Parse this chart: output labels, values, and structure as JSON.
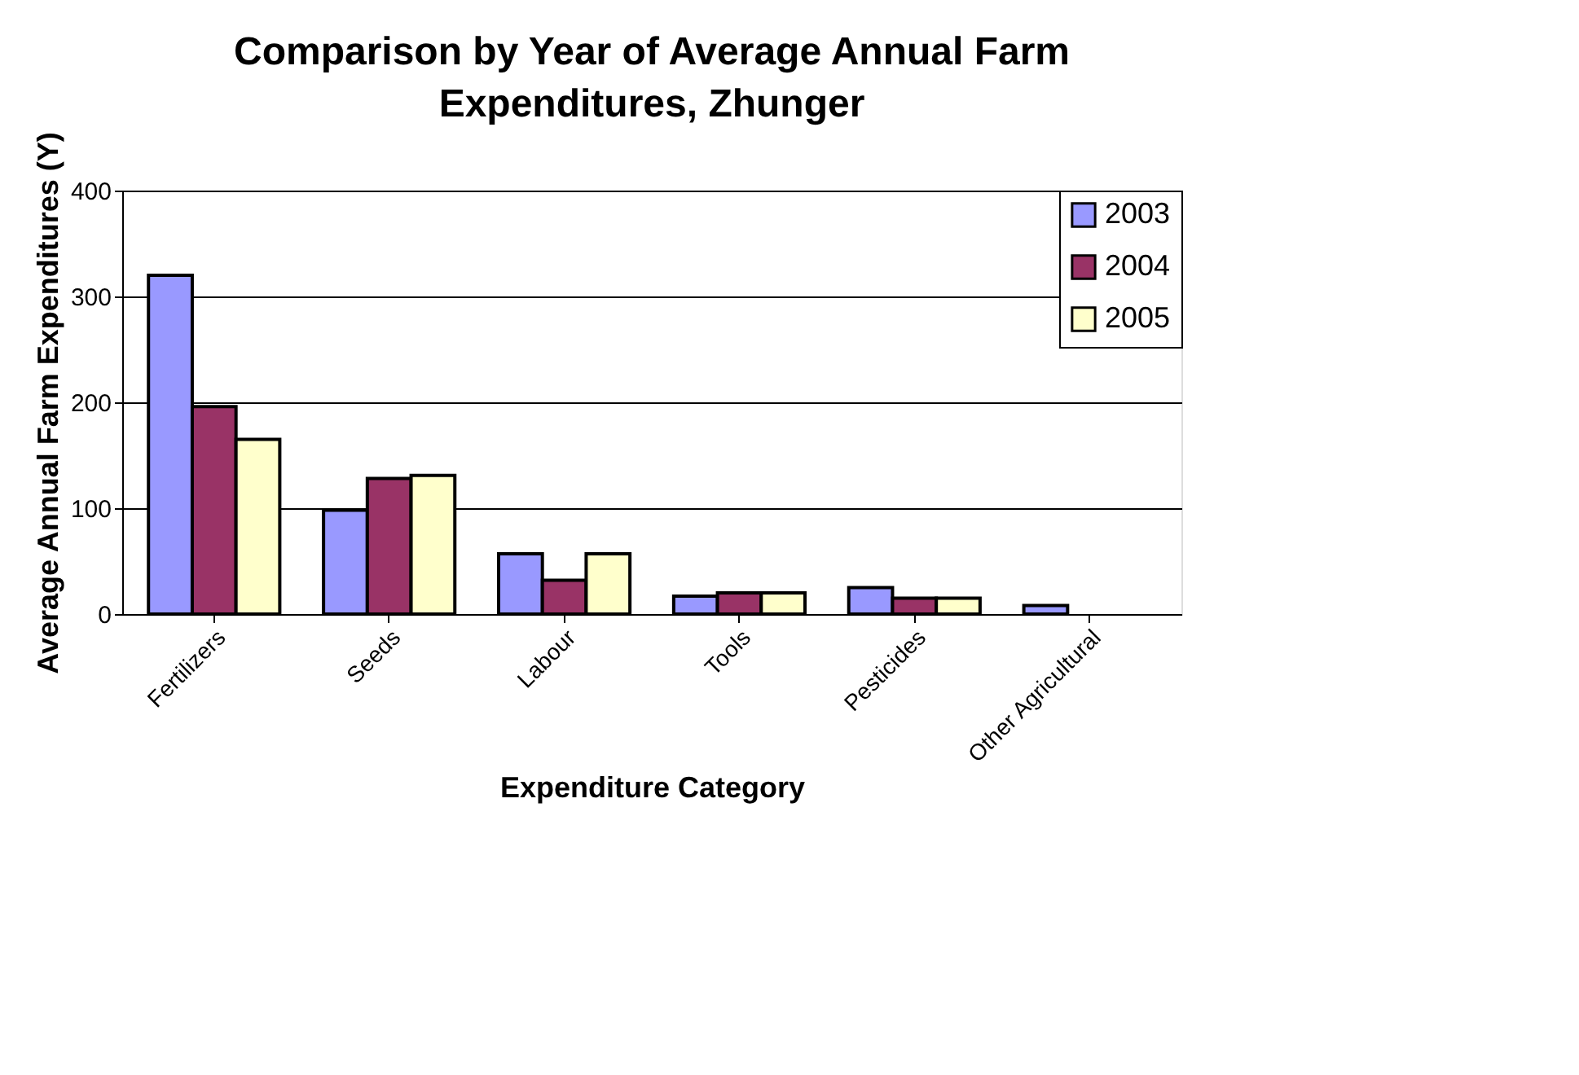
{
  "chart_data": {
    "type": "bar",
    "title": "Comparison by Year of Average Annual Farm Expenditures, Zhunger",
    "xlabel": "Expenditure Category",
    "ylabel": "Average Annual Farm Expenditures (Y)",
    "categories": [
      "Fertilizers",
      "Seeds",
      "Labour",
      "Tools",
      "Pesticides",
      "Other Agricultural"
    ],
    "series": [
      {
        "name": "2003",
        "color": "#9999ff",
        "values": [
          320,
          98,
          57,
          17,
          25,
          8
        ]
      },
      {
        "name": "2004",
        "color": "#993366",
        "values": [
          196,
          128,
          32,
          20,
          15,
          null
        ]
      },
      {
        "name": "2005",
        "color": "#ffffcc",
        "values": [
          165,
          131,
          57,
          20,
          15,
          null
        ]
      }
    ],
    "ylim": [
      0,
      400
    ],
    "yticks": [
      0,
      100,
      200,
      300,
      400
    ],
    "grid": "y",
    "legend": "top right"
  }
}
